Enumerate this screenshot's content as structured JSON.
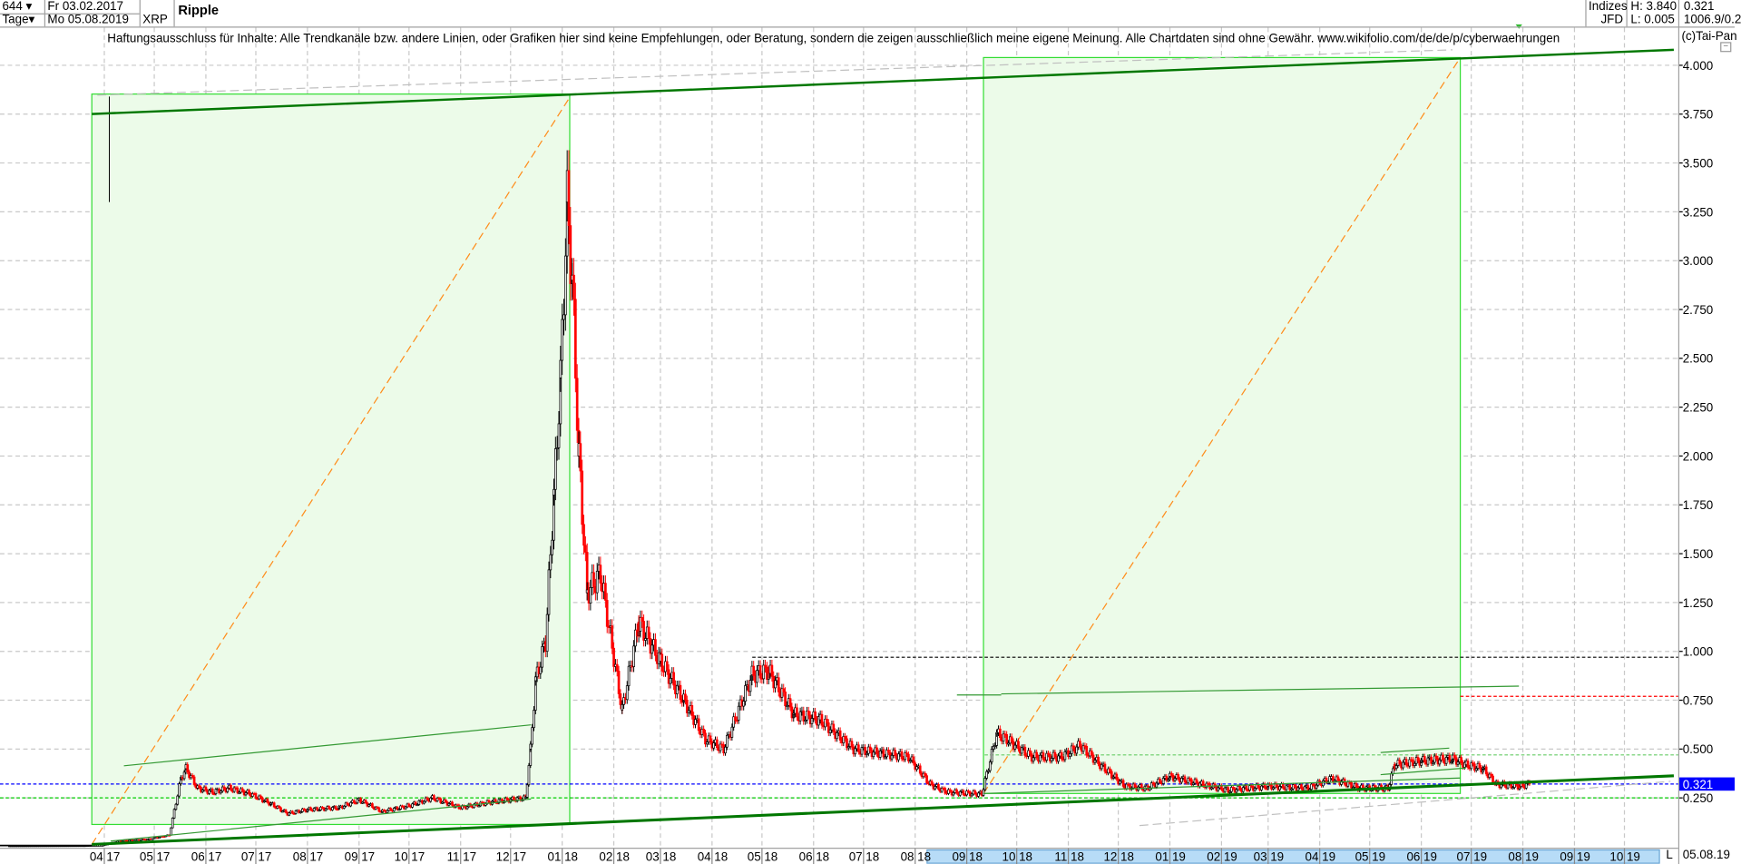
{
  "header": {
    "period_count": "644",
    "interval": "Tage",
    "start_date": "Fr 03.02.2017",
    "end_date": "Mo 05.08.2019",
    "symbol": "XRP",
    "title": "Ripple",
    "market": "Indizes",
    "exchange": "JFD",
    "high": "H: 3.840",
    "low": "L: 0.005",
    "last": "0.321",
    "volume_info": "1006.9/0.2",
    "copyright": "(c)Tai-Pan"
  },
  "disclaimer": "Haftungsausschluss für Inhalte: Alle Trendkanäle bzw. andere Linien, oder Grafiken hier sind keine Empfehlungen, oder Beratung, sondern die zeigen ausschließlich meine eigene Meinung. Alle Chartdaten sind ohne Gewähr.  www.wikifolio.com/de/de/p/cyberwaehrungen",
  "footer": {
    "scale_mode": "L",
    "current_date": "05.08.19"
  },
  "colors": {
    "up": "#ffffff",
    "down": "#ff0000",
    "channel_fill": "#ecfbe9",
    "channel_border": "#33dd33",
    "trend": "#007700",
    "projection": "#ff8c1a",
    "last_marker": "#0000ff"
  },
  "chart_data": {
    "type": "candlestick",
    "title": "Ripple",
    "ylim": [
      0,
      4.1
    ],
    "y_ticks": [
      "0.250",
      "0.500",
      "0.750",
      "1.000",
      "1.250",
      "1.500",
      "1.750",
      "2.000",
      "2.250",
      "2.500",
      "2.750",
      "3.000",
      "3.250",
      "3.500",
      "3.750",
      "4.000"
    ],
    "x_ticks": [
      "04 17",
      "05 17",
      "06 17",
      "07 17",
      "08 17",
      "09 17",
      "10 17",
      "11 17",
      "12 17",
      "01 18",
      "02 18",
      "03 18",
      "04 18",
      "05 18",
      "06 18",
      "07 18",
      "08 18",
      "09 18",
      "10 18",
      "11 18",
      "12 18",
      "01 19",
      "02 19",
      "03 19",
      "04 19",
      "05 19",
      "06 19",
      "07 19",
      "08 19",
      "09 19",
      "10 19"
    ],
    "grid": true,
    "last_value": "0.321",
    "high": 3.84,
    "low": 0.005,
    "horizontal_levels": [
      {
        "value": 0.97,
        "color": "#000000"
      },
      {
        "value": 0.77,
        "color": "#ff0000"
      },
      {
        "value": 0.47,
        "color": "#66cc66"
      },
      {
        "value": 0.321,
        "color": "#0000ff"
      },
      {
        "value": 0.25,
        "color": "#00cc00"
      }
    ],
    "closes": [
      [
        "2017-02-03",
        0.006
      ],
      [
        "2017-03-20",
        0.007
      ],
      [
        "2017-03-31",
        0.009
      ],
      [
        "2017-04-10",
        0.03
      ],
      [
        "2017-04-28",
        0.04
      ],
      [
        "2017-05-10",
        0.06
      ],
      [
        "2017-05-17",
        0.35
      ],
      [
        "2017-05-20",
        0.4
      ],
      [
        "2017-05-27",
        0.3
      ],
      [
        "2017-06-05",
        0.28
      ],
      [
        "2017-06-15",
        0.3
      ],
      [
        "2017-06-28",
        0.27
      ],
      [
        "2017-07-10",
        0.22
      ],
      [
        "2017-07-20",
        0.17
      ],
      [
        "2017-08-01",
        0.19
      ],
      [
        "2017-08-20",
        0.2
      ],
      [
        "2017-09-01",
        0.24
      ],
      [
        "2017-09-15",
        0.18
      ],
      [
        "2017-10-01",
        0.21
      ],
      [
        "2017-10-15",
        0.25
      ],
      [
        "2017-11-01",
        0.2
      ],
      [
        "2017-11-20",
        0.23
      ],
      [
        "2017-12-10",
        0.25
      ],
      [
        "2017-12-13",
        0.5
      ],
      [
        "2017-12-16",
        0.85
      ],
      [
        "2017-12-22",
        1.05
      ],
      [
        "2017-12-27",
        1.8
      ],
      [
        "2017-12-31",
        2.4
      ],
      [
        "2018-01-04",
        3.3
      ],
      [
        "2018-01-07",
        2.9
      ],
      [
        "2018-01-11",
        2.0
      ],
      [
        "2018-01-16",
        1.3
      ],
      [
        "2018-01-24",
        1.4
      ],
      [
        "2018-02-06",
        0.7
      ],
      [
        "2018-02-16",
        1.15
      ],
      [
        "2018-03-01",
        0.95
      ],
      [
        "2018-03-15",
        0.75
      ],
      [
        "2018-03-28",
        0.55
      ],
      [
        "2018-04-08",
        0.5
      ],
      [
        "2018-04-25",
        0.88
      ],
      [
        "2018-05-05",
        0.9
      ],
      [
        "2018-05-20",
        0.68
      ],
      [
        "2018-06-05",
        0.65
      ],
      [
        "2018-06-25",
        0.5
      ],
      [
        "2018-07-10",
        0.48
      ],
      [
        "2018-07-28",
        0.46
      ],
      [
        "2018-08-10",
        0.32
      ],
      [
        "2018-08-20",
        0.28
      ],
      [
        "2018-09-10",
        0.27
      ],
      [
        "2018-09-19",
        0.58
      ],
      [
        "2018-09-25",
        0.55
      ],
      [
        "2018-10-10",
        0.46
      ],
      [
        "2018-10-28",
        0.46
      ],
      [
        "2018-11-08",
        0.52
      ],
      [
        "2018-11-20",
        0.42
      ],
      [
        "2018-12-05",
        0.31
      ],
      [
        "2018-12-18",
        0.3
      ],
      [
        "2019-01-01",
        0.36
      ],
      [
        "2019-01-20",
        0.32
      ],
      [
        "2019-02-05",
        0.29
      ],
      [
        "2019-03-01",
        0.31
      ],
      [
        "2019-03-25",
        0.3
      ],
      [
        "2019-04-08",
        0.35
      ],
      [
        "2019-04-25",
        0.3
      ],
      [
        "2019-05-12",
        0.3
      ],
      [
        "2019-05-16",
        0.42
      ],
      [
        "2019-06-01",
        0.44
      ],
      [
        "2019-06-20",
        0.45
      ],
      [
        "2019-06-28",
        0.42
      ],
      [
        "2019-07-08",
        0.4
      ],
      [
        "2019-07-16",
        0.32
      ],
      [
        "2019-07-30",
        0.31
      ],
      [
        "2019-08-05",
        0.321
      ]
    ]
  }
}
